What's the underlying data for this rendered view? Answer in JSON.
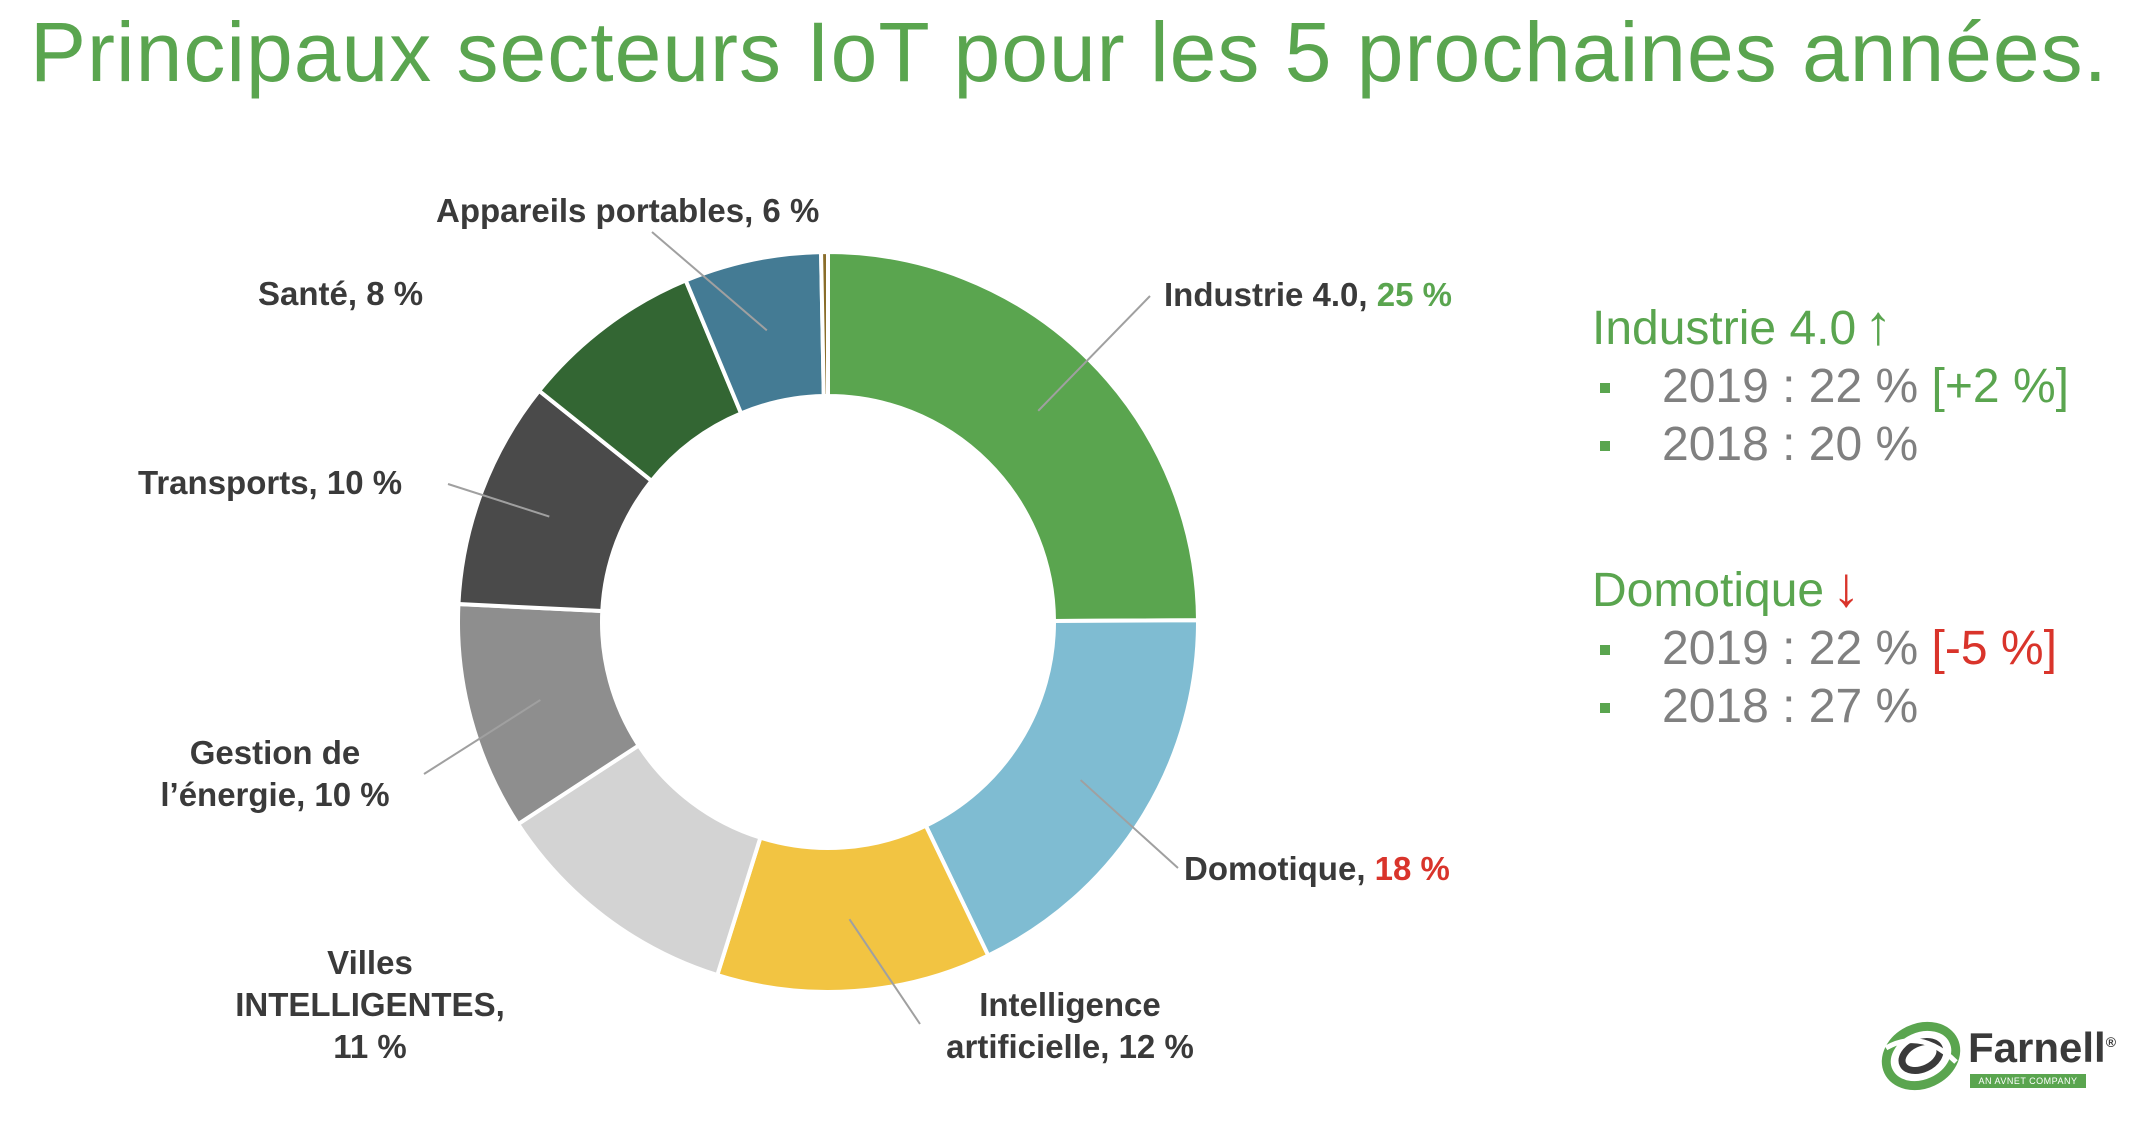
{
  "title": "Principaux secteurs IoT pour les 5 prochaines années.",
  "chart_data": {
    "type": "pie",
    "donut": true,
    "slices": [
      {
        "label": "Industrie 4.0",
        "value": 25,
        "display": "25 %",
        "color": "#5aa54f"
      },
      {
        "label": "Domotique",
        "value": 18,
        "display": "18 %",
        "color": "#7fbcd2"
      },
      {
        "label": "Intelligence artificielle",
        "value": 12,
        "display": "12 %",
        "color": "#f2c442"
      },
      {
        "label": "Villes INTELLIGENTES",
        "value": 11,
        "display": "11 %",
        "color": "#d3d3d3"
      },
      {
        "label": "Gestion de l’énergie",
        "value": 10,
        "display": "10 %",
        "color": "#8e8e8e"
      },
      {
        "label": "Transports",
        "value": 10,
        "display": "10 %",
        "color": "#4a4a4a"
      },
      {
        "label": "Santé",
        "value": 8,
        "display": "8 %",
        "color": "#336633"
      },
      {
        "label": "Appareils portables",
        "value": 6,
        "display": "6 %",
        "color": "#447b94"
      },
      {
        "label": "",
        "value": 0.3,
        "display": "",
        "color": "#8a6d2a"
      }
    ]
  },
  "labels": {
    "industrie_name": "Industrie 4.0,",
    "industrie_pct": "25 %",
    "domotique_name": "Domotique,",
    "domotique_pct": "18 %",
    "ia_line1": "Intelligence",
    "ia_line2": "artificielle, 12 %",
    "villes_line1": "Villes",
    "villes_line2": "INTELLIGENTES,",
    "villes_line3": "11 %",
    "energie_line1": "Gestion de",
    "energie_line2": "l’énergie, 10 %",
    "transports": "Transports, 10 %",
    "sante": "Santé, 8 %",
    "portables": "Appareils portables, 6 %"
  },
  "panel": {
    "industrie": {
      "heading": "Industrie 4.0",
      "arrow": "↑",
      "row1": "2019 : 22 %",
      "row1_change": "[+2 %]",
      "row2": "2018 : 20 %"
    },
    "domotique": {
      "heading": "Domotique",
      "arrow": "↓",
      "row1": "2019 : 22 %",
      "row1_change": "[-5 %]",
      "row2": "2018 : 27 %"
    }
  },
  "logo": {
    "name": "Farnell",
    "trademark": "®",
    "tagline": "AN AVNET COMPANY"
  },
  "colors": {
    "green": "#5aa54f",
    "red": "#d9342b",
    "gray_text": "#808080"
  }
}
